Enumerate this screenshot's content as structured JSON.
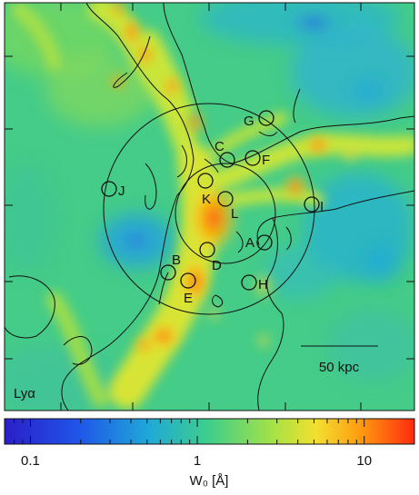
{
  "panel": {
    "line_label": "Lyα",
    "scalebar_label": "50 kpc"
  },
  "markers": [
    {
      "label": "A"
    },
    {
      "label": "B"
    },
    {
      "label": "C"
    },
    {
      "label": "D"
    },
    {
      "label": "E"
    },
    {
      "label": "F"
    },
    {
      "label": "G"
    },
    {
      "label": "H"
    },
    {
      "label": "I"
    },
    {
      "label": "J"
    },
    {
      "label": "K"
    },
    {
      "label": "L"
    }
  ],
  "colorbar": {
    "scale": "log",
    "range": [
      0.07,
      20
    ],
    "ticks": [
      {
        "value": 0.1,
        "label": "0.1"
      },
      {
        "value": 1,
        "label": "1"
      },
      {
        "value": 10,
        "label": "10"
      }
    ],
    "axis_label": "W₀ [Å]",
    "colors": {
      "low": "#1f3bd6",
      "mid_low": "#1f9fe0",
      "mid": "#3fce92",
      "mid_high": "#c6e43a",
      "high": "#ffb000",
      "max": "#ff3c10"
    }
  }
}
